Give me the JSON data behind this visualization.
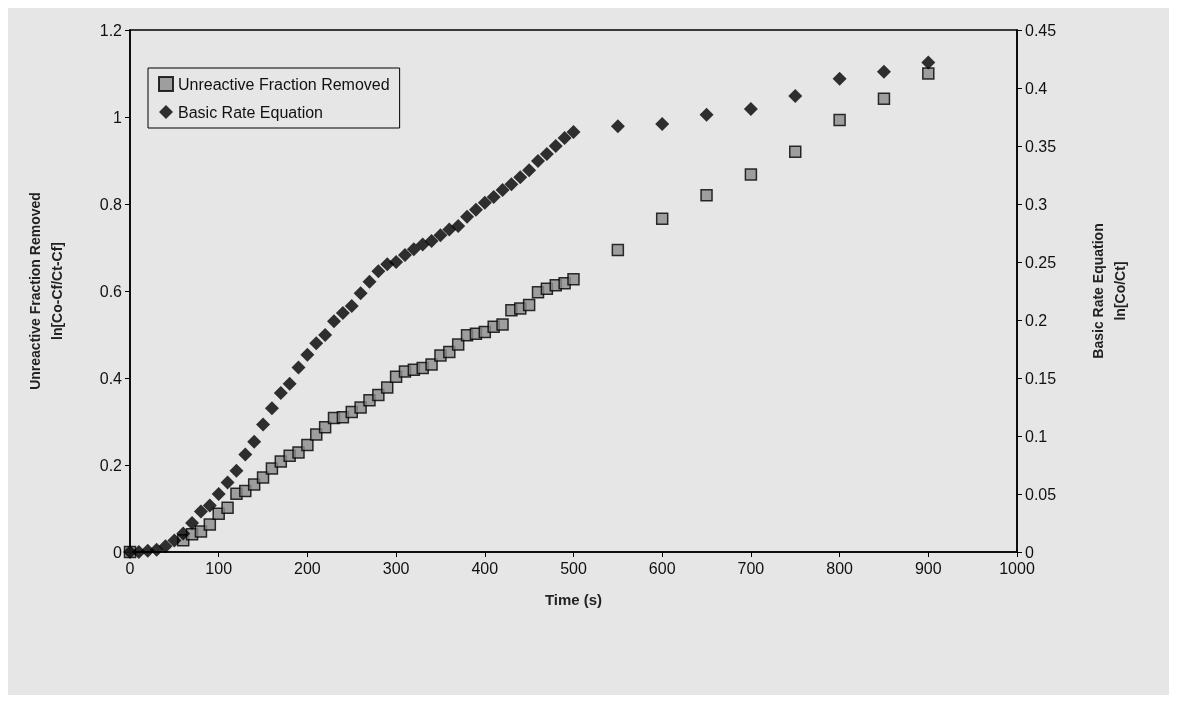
{
  "chart_data": {
    "type": "scatter",
    "xlabel": "Time (s)",
    "ylabel": "Unreactive Fraction Removed\nln[Co-Cf/Ct-Cf]",
    "y2label": "Basic Rate Equation\nln[Co/Ct]",
    "xlim": [
      0,
      1000
    ],
    "xticks": [
      0,
      100,
      200,
      300,
      400,
      500,
      600,
      700,
      800,
      900,
      1000
    ],
    "ylim": [
      0,
      1.2
    ],
    "yticks": [
      0,
      0.2,
      0.4,
      0.6,
      0.8,
      1,
      1.2
    ],
    "y2lim": [
      0,
      0.45
    ],
    "y2ticks": [
      0,
      0.05,
      0.1,
      0.15,
      0.2,
      0.25,
      0.3,
      0.35,
      0.4,
      0.45
    ],
    "legend": "top left",
    "grid": false,
    "series": [
      {
        "name": "Unreactive Fraction Removed",
        "color": "#8c8c8c",
        "marker": "square",
        "x": [
          0,
          10,
          20,
          30,
          40,
          50,
          60,
          70,
          80,
          90,
          100,
          110,
          120,
          130,
          140,
          150,
          160,
          170,
          180,
          190,
          200,
          210,
          220,
          230,
          240,
          250,
          260,
          270,
          280,
          290,
          300,
          310,
          320,
          330,
          340,
          350,
          360,
          370,
          380,
          390,
          400,
          410,
          420,
          430,
          440,
          450,
          460,
          470,
          480,
          490,
          500,
          550,
          600,
          650,
          700,
          750,
          800,
          850,
          900
        ],
        "values": [
          0,
          null,
          null,
          null,
          null,
          null,
          0.027,
          0.041,
          0.047,
          0.063,
          0.088,
          0.102,
          0.134,
          0.14,
          0.155,
          0.171,
          0.192,
          0.208,
          0.221,
          0.229,
          0.246,
          0.27,
          0.287,
          0.308,
          0.31,
          0.322,
          0.332,
          0.349,
          0.361,
          0.378,
          0.403,
          0.415,
          0.419,
          0.423,
          0.431,
          0.452,
          0.46,
          0.477,
          0.498,
          0.502,
          0.506,
          0.518,
          0.523,
          0.556,
          0.56,
          0.568,
          0.597,
          0.605,
          0.613,
          0.618,
          0.627,
          0.694,
          0.766,
          0.82,
          0.868,
          0.92,
          0.993,
          1.042,
          1.1
        ]
      },
      {
        "name": "Basic Rate Equation",
        "color": "#000000",
        "marker": "diamond",
        "axis": "y2",
        "x": [
          0,
          10,
          20,
          30,
          40,
          50,
          60,
          70,
          80,
          90,
          100,
          110,
          120,
          130,
          140,
          150,
          160,
          170,
          180,
          190,
          200,
          210,
          220,
          230,
          240,
          250,
          260,
          270,
          280,
          290,
          300,
          310,
          320,
          330,
          340,
          350,
          360,
          370,
          380,
          390,
          400,
          410,
          420,
          430,
          440,
          450,
          460,
          470,
          480,
          490,
          500,
          550,
          600,
          650,
          700,
          750,
          800,
          850,
          900
        ],
        "values": [
          0,
          0,
          0.001,
          0.002,
          0.005,
          0.01,
          0.016,
          0.025,
          0.035,
          0.04,
          0.05,
          0.06,
          0.07,
          0.084,
          0.095,
          0.11,
          0.124,
          0.137,
          0.145,
          0.159,
          0.17,
          0.18,
          0.187,
          0.199,
          0.206,
          0.212,
          0.223,
          0.233,
          0.242,
          0.248,
          0.25,
          0.256,
          0.261,
          0.265,
          0.268,
          0.273,
          0.278,
          0.281,
          0.289,
          0.295,
          0.301,
          0.306,
          0.312,
          0.317,
          0.323,
          0.329,
          0.337,
          0.343,
          0.35,
          0.357,
          0.362,
          0.367,
          0.369,
          0.377,
          0.382,
          0.393,
          0.408,
          0.414,
          0.422
        ]
      }
    ]
  }
}
